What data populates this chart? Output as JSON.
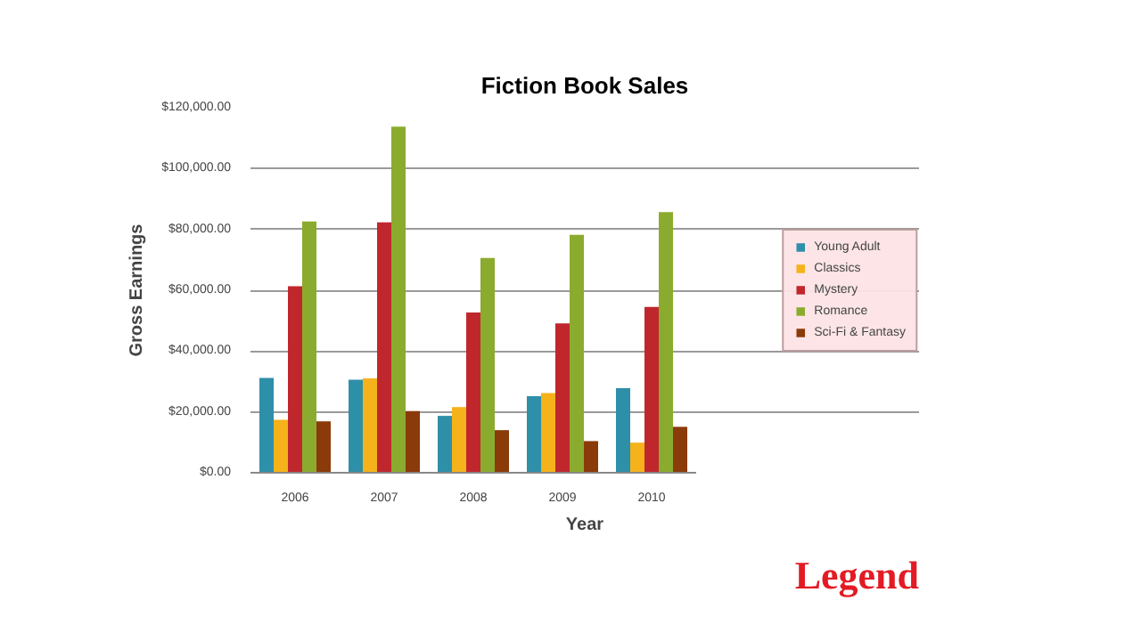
{
  "chart_data": {
    "type": "bar",
    "title": "Fiction Book Sales",
    "xlabel": "Year",
    "ylabel": "Gross Earnings",
    "categories": [
      "2006",
      "2007",
      "2008",
      "2009",
      "2010"
    ],
    "series": [
      {
        "name": "Young Adult",
        "color": "#2e8fa8",
        "values": [
          31200,
          30600,
          18700,
          25200,
          27800
        ]
      },
      {
        "name": "Classics",
        "color": "#f5b21a",
        "values": [
          17400,
          31000,
          21600,
          26200,
          9900
        ]
      },
      {
        "name": "Mystery",
        "color": "#c0272d",
        "values": [
          61300,
          82300,
          52700,
          49100,
          54500
        ]
      },
      {
        "name": "Romance",
        "color": "#8bab2e",
        "values": [
          82600,
          113800,
          70600,
          78200,
          85700
        ]
      },
      {
        "name": "Sci-Fi & Fantasy",
        "color": "#8b3a0a",
        "values": [
          16900,
          20300,
          14000,
          10400,
          15100
        ]
      }
    ],
    "ylim": [
      0,
      120000
    ],
    "yticks": [
      {
        "value": 0,
        "label": "$0.00"
      },
      {
        "value": 20000,
        "label": "$20,000.00"
      },
      {
        "value": 40000,
        "label": "$40,000.00"
      },
      {
        "value": 60000,
        "label": "$60,000.00"
      },
      {
        "value": 80000,
        "label": "$80,000.00"
      },
      {
        "value": 100000,
        "label": "$100,000.00"
      },
      {
        "value": 120000,
        "label": "$120,000.00"
      }
    ],
    "grid": "y",
    "legend": "right",
    "annotations": [
      "Legend"
    ]
  }
}
